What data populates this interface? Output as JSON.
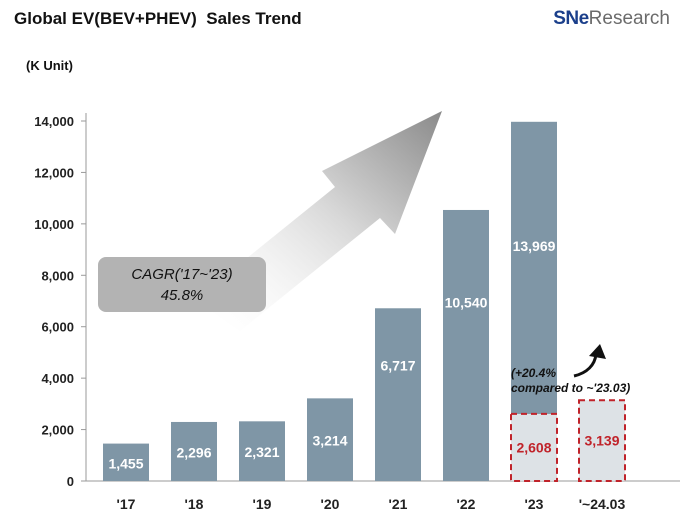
{
  "header": {
    "title": "Global EV(BEV+PHEV)  Sales Trend",
    "logo_sne": "SNe",
    "logo_research": "Research"
  },
  "chart_data": {
    "type": "bar",
    "title": "Global EV(BEV+PHEV)  Sales Trend",
    "ylabel": "(K Unit)",
    "categories": [
      "'17",
      "'18",
      "'19",
      "'20",
      "'21",
      "'22",
      "'23",
      "'~24.03"
    ],
    "values": [
      1455,
      2296,
      2321,
      3214,
      6717,
      10540,
      13969,
      null
    ],
    "value_labels": [
      "1,455",
      "2,296",
      "2,321",
      "3,214",
      "6,717",
      "10,540",
      "13,969",
      ""
    ],
    "ylim": [
      0,
      14000
    ],
    "yticks": [
      0,
      2000,
      4000,
      6000,
      8000,
      10000,
      12000,
      14000
    ],
    "ytick_labels": [
      "0",
      "2,000",
      "4,000",
      "6,000",
      "8,000",
      "10,000",
      "12,000",
      "14,000"
    ],
    "grid": false,
    "q1_comparison": {
      "categories": [
        "'23",
        "'~24.03"
      ],
      "values": [
        2608,
        3139
      ],
      "labels": [
        "2,608",
        "3,139"
      ]
    },
    "annotations": {
      "cagr_line1": "CAGR('17~'23)",
      "cagr_line2": "45.8%",
      "growth_line1": "(+20.4%",
      "growth_line2": "compared to ~'23.03)"
    },
    "colors": {
      "bar": "#7f96a6",
      "q1_box_border": "#c0232a",
      "q1_box_fill": "#dde2e6",
      "q1_label": "#c0232a",
      "axis": "#9a9a9a"
    }
  }
}
